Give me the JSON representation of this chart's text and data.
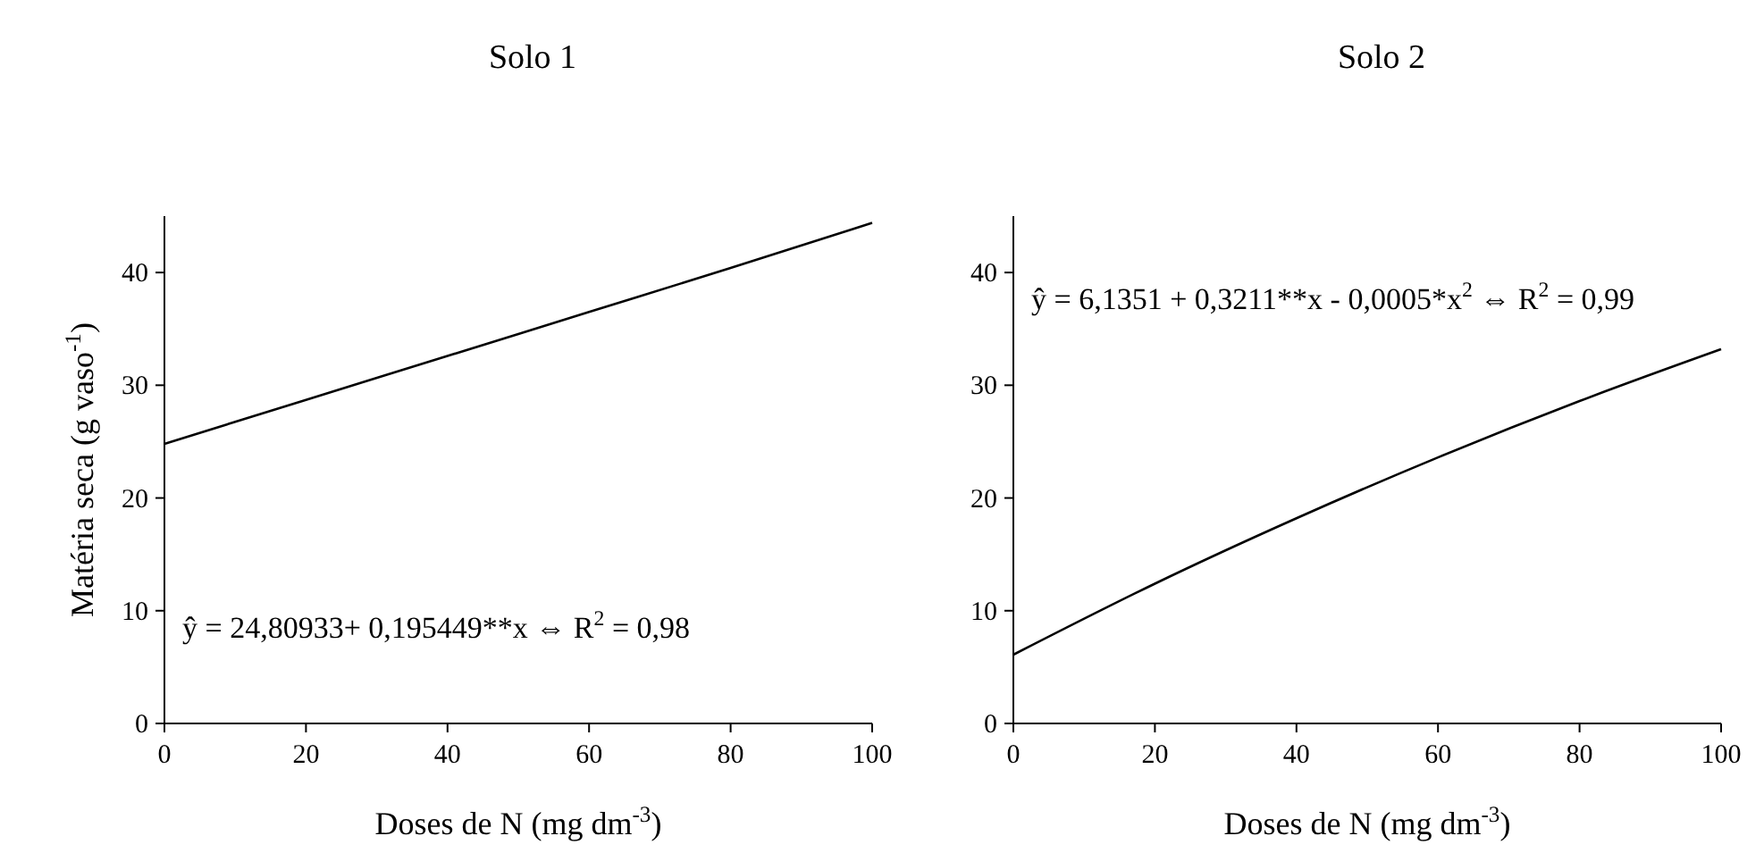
{
  "chart_data": [
    {
      "type": "line",
      "title": "Solo 1",
      "xlabel": "Doses de N (mg dm$^{-3}$)",
      "ylabel": "Matéria seca (g vaso$^{-1}$)",
      "x": [
        0,
        20,
        40,
        60,
        80,
        100
      ],
      "series": [
        {
          "color": "#000000",
          "values": [
            24.8,
            28.7,
            32.6,
            36.5,
            40.4,
            44.4
          ]
        }
      ],
      "xlim": [
        0,
        100
      ],
      "xticks": [
        0,
        20,
        40,
        60,
        80,
        100
      ],
      "ylim": [
        0,
        45
      ],
      "yticks": [
        0,
        10,
        20,
        30,
        40
      ],
      "grid": false,
      "marker": "none",
      "line_style": "solid",
      "annotations": [
        "ŷ = 24,80933+ 0,195449**x ⇔ R$^{2}$ = 0,98"
      ]
    },
    {
      "type": "line",
      "title": "Solo 2",
      "xlabel": "Doses de N (mg dm$^{-3}$)",
      "x": [
        0,
        20,
        40,
        60,
        80,
        100
      ],
      "series": [
        {
          "color": "#000000",
          "values": [
            6.1,
            12.4,
            18.2,
            23.6,
            28.6,
            33.2
          ]
        }
      ],
      "xlim": [
        0,
        100
      ],
      "xticks": [
        0,
        20,
        40,
        60,
        80,
        100
      ],
      "ylim": [
        0,
        45
      ],
      "yticks": [
        0,
        10,
        20,
        30,
        40
      ],
      "grid": false,
      "marker": "none",
      "line_style": "solid",
      "annotations": [
        "ŷ = 6,1351 + 0,3211**x - 0,0005*x$^{2}$ ⇔ R$^{2}$ = 0,99"
      ]
    }
  ]
}
